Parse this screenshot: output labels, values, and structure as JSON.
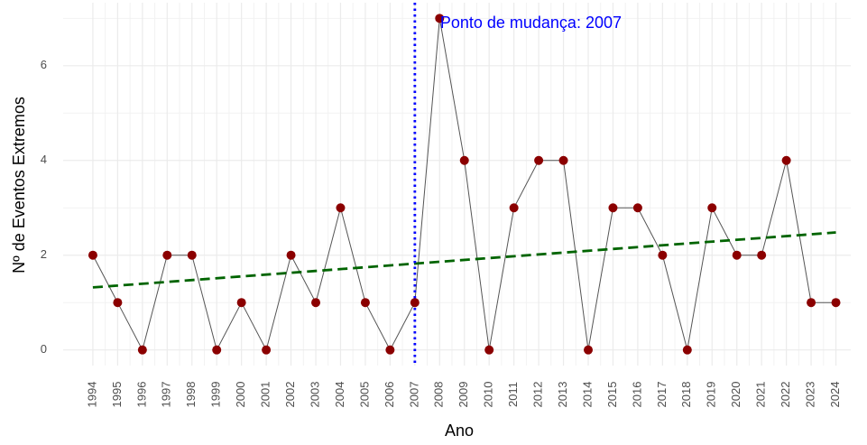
{
  "chart_data": {
    "type": "line",
    "x_label": "Ano",
    "y_label": "Nº de Eventos Extremos",
    "x": [
      1994,
      1995,
      1996,
      1997,
      1998,
      1999,
      2000,
      2001,
      2002,
      2003,
      2004,
      2005,
      2006,
      2007,
      2008,
      2009,
      2010,
      2011,
      2012,
      2013,
      2014,
      2015,
      2016,
      2017,
      2018,
      2019,
      2020,
      2021,
      2022,
      2023,
      2024
    ],
    "series": [
      {
        "color": "#8b0000",
        "line_color": "#555555",
        "values": [
          2,
          1,
          0,
          2,
          2,
          0,
          1,
          0,
          2,
          1,
          3,
          1,
          0,
          1,
          7,
          4,
          0,
          3,
          4,
          4,
          0,
          3,
          3,
          2,
          0,
          3,
          2,
          2,
          4,
          1,
          1
        ]
      },
      {
        "color": "#006400",
        "style": "dashed",
        "x": [
          1994,
          2024
        ],
        "values": [
          1.32,
          2.48
        ]
      }
    ],
    "vline": {
      "x": 2007,
      "color": "#0000ff",
      "label": "Ponto de mudança: 2007"
    },
    "xlim": [
      1992.8,
      2024.6
    ],
    "ylim": [
      -0.33,
      7.33
    ],
    "xticks": [
      1994,
      1995,
      1996,
      1997,
      1998,
      1999,
      2000,
      2001,
      2002,
      2003,
      2004,
      2005,
      2006,
      2007,
      2008,
      2009,
      2010,
      2011,
      2012,
      2013,
      2014,
      2015,
      2016,
      2017,
      2018,
      2019,
      2020,
      2021,
      2022,
      2023,
      2024
    ],
    "yticks": [
      0,
      2,
      4,
      6
    ],
    "grid": true
  }
}
